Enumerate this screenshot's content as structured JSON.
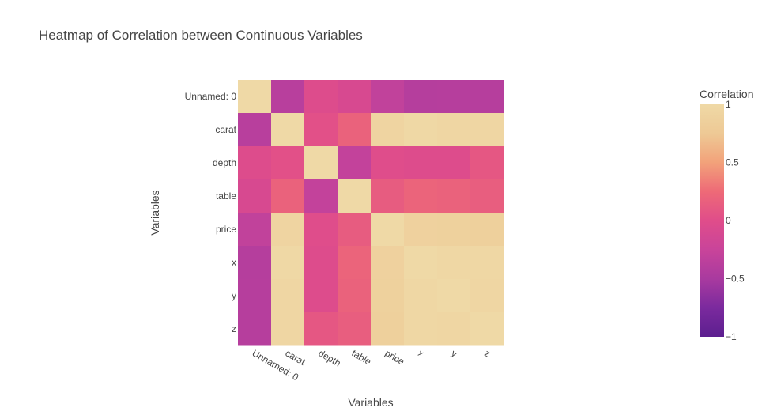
{
  "chart_data": {
    "type": "heatmap",
    "title": "Heatmap of Correlation between Continuous Variables",
    "xlabel": "Variables",
    "ylabel": "Variables",
    "x": [
      "Unnamed: 0",
      "carat",
      "depth",
      "table",
      "price",
      "x",
      "y",
      "z"
    ],
    "y": [
      "Unnamed: 0",
      "carat",
      "depth",
      "table",
      "price",
      "x",
      "y",
      "z"
    ],
    "z": [
      [
        1.0,
        -0.38,
        -0.03,
        -0.1,
        -0.31,
        -0.41,
        -0.4,
        -0.4
      ],
      [
        -0.38,
        1.0,
        0.03,
        0.18,
        0.92,
        0.98,
        0.95,
        0.95
      ],
      [
        -0.03,
        0.03,
        1.0,
        -0.3,
        -0.01,
        -0.03,
        -0.03,
        0.09
      ],
      [
        -0.1,
        0.18,
        -0.3,
        1.0,
        0.13,
        0.2,
        0.18,
        0.15
      ],
      [
        -0.31,
        0.92,
        -0.01,
        0.13,
        1.0,
        0.88,
        0.87,
        0.86
      ],
      [
        -0.41,
        0.98,
        -0.03,
        0.2,
        0.88,
        1.0,
        0.97,
        0.97
      ],
      [
        -0.4,
        0.95,
        -0.03,
        0.18,
        0.87,
        0.97,
        1.0,
        0.95
      ],
      [
        -0.4,
        0.95,
        0.09,
        0.15,
        0.86,
        0.97,
        0.95,
        1.0
      ]
    ],
    "zmin": -1,
    "zmax": 1,
    "colorscale": [
      "#5c1f8f",
      "#7b2a9e",
      "#a93a9f",
      "#c9449a",
      "#e04d8a",
      "#ee6a77",
      "#f2a27a",
      "#eec995",
      "#efd9a6"
    ],
    "colorbar": {
      "title": "Correlation",
      "ticks": [
        1,
        0.5,
        0,
        -0.5,
        -1
      ],
      "tick_labels": [
        "1",
        "0.5",
        "0",
        "−0.5",
        "−1"
      ]
    }
  }
}
